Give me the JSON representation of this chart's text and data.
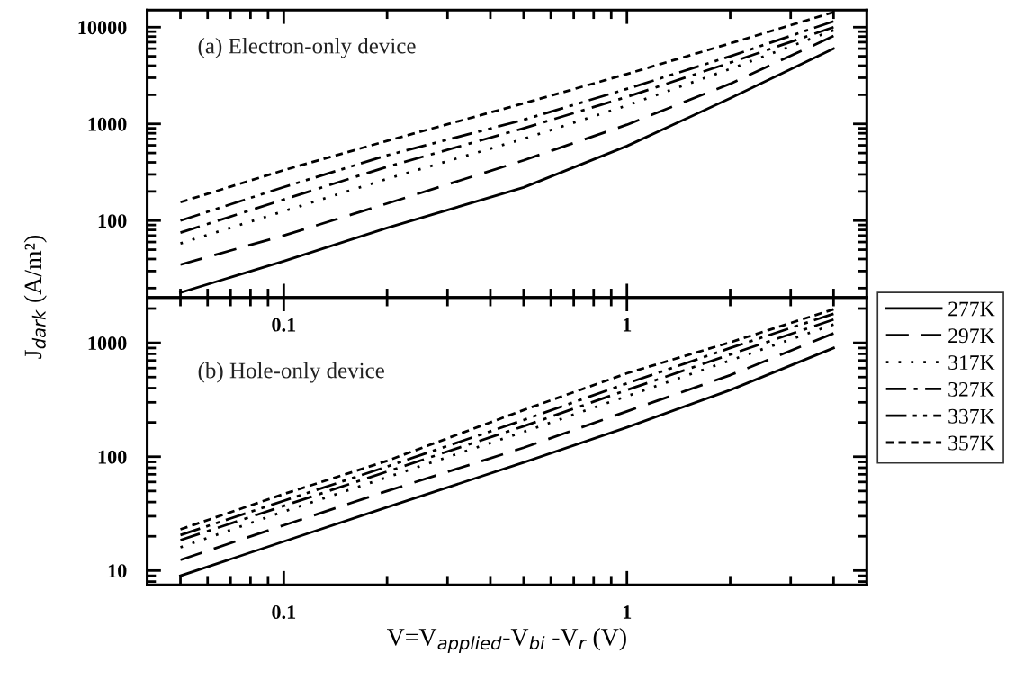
{
  "chart_data": [
    {
      "type": "line",
      "ylabel": "J$_{dark}$ (A/m²)",
      "log": "xy",
      "legend": "right",
      "marker": "none",
      "grid": false,
      "x": [
        0.05,
        0.1,
        0.2,
        0.5,
        1,
        2,
        4
      ],
      "xlim": [
        0.04,
        5
      ],
      "xticks": [
        {
          "value": 0.05,
          "label": null
        },
        {
          "value": 0.06,
          "label": null
        },
        {
          "value": 0.07,
          "label": null
        },
        {
          "value": 0.08,
          "label": null
        },
        {
          "value": 0.09,
          "label": null
        },
        0.1,
        {
          "value": 0.2,
          "label": null
        },
        {
          "value": 0.3,
          "label": null
        },
        {
          "value": 0.4,
          "label": null
        },
        {
          "value": 0.5,
          "label": null
        },
        {
          "value": 0.6,
          "label": null
        },
        {
          "value": 0.7,
          "label": null
        },
        {
          "value": 0.8,
          "label": null
        },
        {
          "value": 0.9,
          "label": null
        },
        1,
        {
          "value": 2,
          "label": null
        },
        {
          "value": 3,
          "label": null
        },
        {
          "value": 4,
          "label": null
        }
      ],
      "ylim": [
        16,
        15000
      ],
      "yticks": [
        {
          "value": 20,
          "label": null
        },
        {
          "value": 30,
          "label": null
        },
        {
          "value": 40,
          "label": null
        },
        {
          "value": 50,
          "label": null
        },
        {
          "value": 60,
          "label": null
        },
        {
          "value": 70,
          "label": null
        },
        {
          "value": 80,
          "label": null
        },
        {
          "value": 90,
          "label": null
        },
        100,
        {
          "value": 200,
          "label": null
        },
        {
          "value": 300,
          "label": null
        },
        {
          "value": 400,
          "label": null
        },
        {
          "value": 500,
          "label": null
        },
        {
          "value": 600,
          "label": null
        },
        {
          "value": 700,
          "label": null
        },
        {
          "value": 800,
          "label": null
        },
        {
          "value": 900,
          "label": null
        },
        1000,
        {
          "value": 2000,
          "label": null
        },
        {
          "value": 3000,
          "label": null
        },
        {
          "value": 4000,
          "label": null
        },
        {
          "value": 5000,
          "label": null
        },
        {
          "value": 6000,
          "label": null
        },
        {
          "value": 7000,
          "label": null
        },
        {
          "value": 8000,
          "label": null
        },
        {
          "value": 9000,
          "label": null
        },
        10000
      ],
      "annotations": [
        "(a) Electron-only device"
      ],
      "series": [
        {
          "name": "277K",
          "color": "#000000",
          "line_style": "solid",
          "values": [
            18,
            38,
            84,
            220,
            590,
            1840,
            6000
          ]
        },
        {
          "name": "297K",
          "color": "#000000",
          "line_style": "dashed",
          "values": [
            35,
            70,
            150,
            420,
            980,
            2600,
            8100
          ]
        },
        {
          "name": "317K",
          "color": "#000000",
          "line_style": "dotted",
          "values": [
            58,
            125,
            270,
            700,
            1550,
            3700,
            9300
          ]
        },
        {
          "name": "327K",
          "color": "#000000",
          "line_style": "dashdot",
          "values": [
            75,
            165,
            360,
            900,
            1900,
            4300,
            10000
          ]
        },
        {
          "name": "337K",
          "color": "#000000",
          "line_style": "dashdotdot",
          "values": [
            100,
            222,
            473,
            1100,
            2300,
            5000,
            11500
          ]
        },
        {
          "name": "357K",
          "color": "#000000",
          "line_style": "shortdash",
          "values": [
            155,
            332,
            668,
            1630,
            3280,
            6800,
            14300
          ]
        }
      ]
    },
    {
      "type": "line",
      "xlabel": "V=V$_{applied}$-V$_{bi}$ -V$_{r}$ (V)",
      "log": "xy",
      "marker": "none",
      "grid": false,
      "x": [
        0.05,
        0.1,
        0.2,
        0.5,
        1,
        2,
        4
      ],
      "xlim": [
        0.04,
        5
      ],
      "xticks": [
        {
          "value": 0.05,
          "label": null
        },
        {
          "value": 0.06,
          "label": null
        },
        {
          "value": 0.07,
          "label": null
        },
        {
          "value": 0.08,
          "label": null
        },
        {
          "value": 0.09,
          "label": null
        },
        0.1,
        {
          "value": 0.2,
          "label": null
        },
        {
          "value": 0.3,
          "label": null
        },
        {
          "value": 0.4,
          "label": null
        },
        {
          "value": 0.5,
          "label": null
        },
        {
          "value": 0.6,
          "label": null
        },
        {
          "value": 0.7,
          "label": null
        },
        {
          "value": 0.8,
          "label": null
        },
        {
          "value": 0.9,
          "label": null
        },
        1,
        {
          "value": 2,
          "label": null
        },
        {
          "value": 3,
          "label": null
        },
        {
          "value": 4,
          "label": null
        }
      ],
      "ylim": [
        7.5,
        2500
      ],
      "yticks": [
        {
          "value": 8,
          "label": null
        },
        {
          "value": 9,
          "label": null
        },
        10,
        {
          "value": 20,
          "label": null
        },
        {
          "value": 30,
          "label": null
        },
        {
          "value": 40,
          "label": null
        },
        {
          "value": 50,
          "label": null
        },
        {
          "value": 60,
          "label": null
        },
        {
          "value": 70,
          "label": null
        },
        {
          "value": 80,
          "label": null
        },
        {
          "value": 90,
          "label": null
        },
        100,
        {
          "value": 200,
          "label": null
        },
        {
          "value": 300,
          "label": null
        },
        {
          "value": 400,
          "label": null
        },
        {
          "value": 500,
          "label": null
        },
        {
          "value": 600,
          "label": null
        },
        {
          "value": 700,
          "label": null
        },
        {
          "value": 800,
          "label": null
        },
        {
          "value": 900,
          "label": null
        },
        1000,
        {
          "value": 2000,
          "label": null
        }
      ],
      "annotations": [
        "(b) Hole-only device"
      ],
      "series": [
        {
          "color": "#000000",
          "line_style": "solid",
          "values": [
            9,
            18,
            36,
            89,
            181,
            385,
            900
          ]
        },
        {
          "color": "#000000",
          "line_style": "dashed",
          "values": [
            12.4,
            25,
            50,
            120,
            250,
            520,
            1210
          ]
        },
        {
          "color": "#000000",
          "line_style": "dotted",
          "values": [
            16,
            33,
            66,
            165,
            340,
            700,
            1450
          ]
        },
        {
          "color": "#000000",
          "line_style": "dashdot",
          "values": [
            18.5,
            37,
            74,
            185,
            385,
            790,
            1600
          ]
        },
        {
          "color": "#000000",
          "line_style": "dashdotdot",
          "values": [
            20.5,
            41,
            82,
            210,
            440,
            900,
            1800
          ]
        },
        {
          "color": "#000000",
          "line_style": "shortdash",
          "values": [
            23,
            47,
            92,
            257,
            540,
            1010,
            1970
          ]
        }
      ]
    }
  ]
}
